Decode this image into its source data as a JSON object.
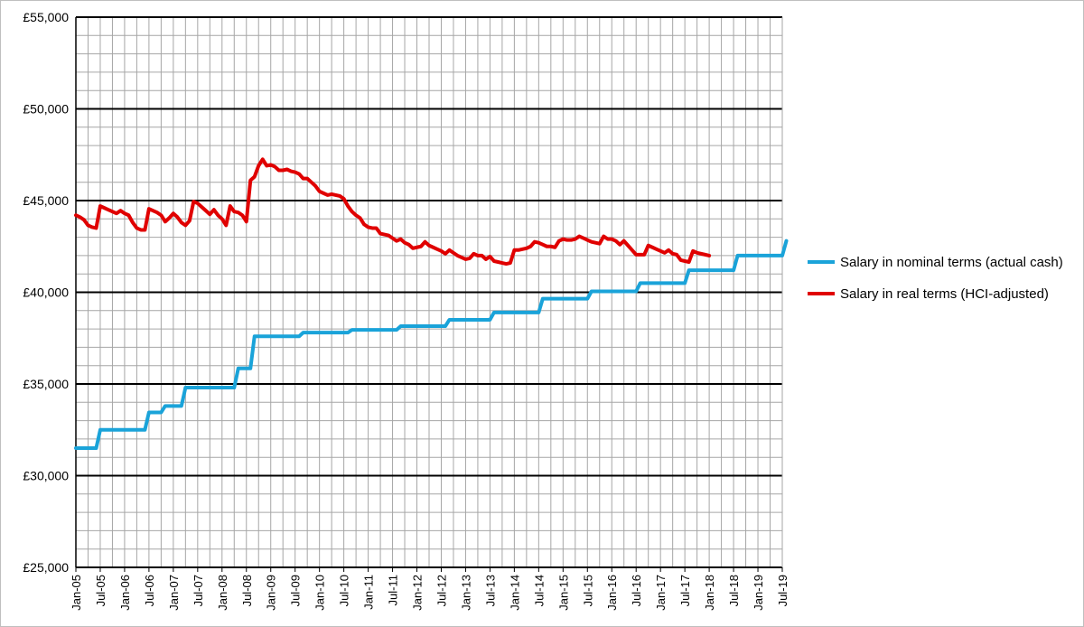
{
  "chart_data": {
    "type": "line",
    "title": "",
    "xlabel": "",
    "ylabel": "",
    "ylim": [
      25000,
      55000
    ],
    "y_ticks": [
      "£25,000",
      "£30,000",
      "£35,000",
      "£40,000",
      "£45,000",
      "£50,000",
      "£55,000"
    ],
    "y_tick_values": [
      25000,
      30000,
      35000,
      40000,
      45000,
      50000,
      55000
    ],
    "x_ticks": [
      "Jan-05",
      "Jul-05",
      "Jan-06",
      "Jul-06",
      "Jan-07",
      "Jul-07",
      "Jan-08",
      "Jul-08",
      "Jan-09",
      "Jul-09",
      "Jan-10",
      "Jul-10",
      "Jan-11",
      "Jul-11",
      "Jan-12",
      "Jul-12",
      "Jan-13",
      "Jul-13",
      "Jan-14",
      "Jul-14",
      "Jan-15",
      "Jul-15",
      "Jan-16",
      "Jul-16",
      "Jan-17",
      "Jul-17",
      "Jan-18",
      "Jul-18",
      "Jan-19",
      "Jul-19"
    ],
    "grid": true,
    "legend_position": "right",
    "series": [
      {
        "name": "Salary in nominal terms (actual cash)",
        "color": "#1aa3d9",
        "points": [
          [
            "Jan-05",
            31500
          ],
          [
            "Jun-05",
            31500
          ],
          [
            "Jul-05",
            32500
          ],
          [
            "Jun-06",
            32500
          ],
          [
            "Jul-06",
            33450
          ],
          [
            "Oct-06",
            33450
          ],
          [
            "Nov-06",
            33800
          ],
          [
            "Mar-07",
            33800
          ],
          [
            "Apr-07",
            34800
          ],
          [
            "Apr-08",
            34800
          ],
          [
            "May-08",
            35850
          ],
          [
            "Aug-08",
            35850
          ],
          [
            "Sep-08",
            37600
          ],
          [
            "Aug-09",
            37600
          ],
          [
            "Sep-09",
            37800
          ],
          [
            "Aug-10",
            37800
          ],
          [
            "Sep-10",
            37950
          ],
          [
            "Aug-11",
            37950
          ],
          [
            "Sep-11",
            38150
          ],
          [
            "Aug-12",
            38150
          ],
          [
            "Sep-12",
            38500
          ],
          [
            "Jul-13",
            38500
          ],
          [
            "Aug-13",
            38900
          ],
          [
            "Jul-14",
            38900
          ],
          [
            "Aug-14",
            39650
          ],
          [
            "Jul-15",
            39650
          ],
          [
            "Aug-15",
            40050
          ],
          [
            "Jul-16",
            40050
          ],
          [
            "Aug-16",
            40500
          ],
          [
            "Jul-17",
            40500
          ],
          [
            "Aug-17",
            41200
          ],
          [
            "Jul-18",
            41200
          ],
          [
            "Aug-18",
            42000
          ],
          [
            "Jul-19",
            42000
          ],
          [
            "Aug-19",
            42800
          ]
        ]
      },
      {
        "name": "Salary in real terms (HCI-adjusted)",
        "color": "#e00000",
        "points": [
          [
            "Jan-05",
            44200
          ],
          [
            "Feb-05",
            44100
          ],
          [
            "Mar-05",
            43950
          ],
          [
            "Apr-05",
            43650
          ],
          [
            "May-05",
            43550
          ],
          [
            "Jun-05",
            43500
          ],
          [
            "Jul-05",
            44700
          ],
          [
            "Aug-05",
            44600
          ],
          [
            "Sep-05",
            44500
          ],
          [
            "Oct-05",
            44400
          ],
          [
            "Nov-05",
            44300
          ],
          [
            "Dec-05",
            44450
          ],
          [
            "Jan-06",
            44300
          ],
          [
            "Feb-06",
            44200
          ],
          [
            "Mar-06",
            43800
          ],
          [
            "Apr-06",
            43500
          ],
          [
            "May-06",
            43400
          ],
          [
            "Jun-06",
            43400
          ],
          [
            "Jul-06",
            44550
          ],
          [
            "Aug-06",
            44450
          ],
          [
            "Sep-06",
            44350
          ],
          [
            "Oct-06",
            44200
          ],
          [
            "Nov-06",
            43850
          ],
          [
            "Dec-06",
            44050
          ],
          [
            "Jan-07",
            44300
          ],
          [
            "Feb-07",
            44100
          ],
          [
            "Mar-07",
            43800
          ],
          [
            "Apr-07",
            43650
          ],
          [
            "May-07",
            43900
          ],
          [
            "Jun-07",
            44950
          ],
          [
            "Jul-07",
            44850
          ],
          [
            "Aug-07",
            44650
          ],
          [
            "Sep-07",
            44450
          ],
          [
            "Oct-07",
            44250
          ],
          [
            "Nov-07",
            44500
          ],
          [
            "Dec-07",
            44200
          ],
          [
            "Jan-08",
            44000
          ],
          [
            "Feb-08",
            43650
          ],
          [
            "Mar-08",
            44700
          ],
          [
            "Apr-08",
            44400
          ],
          [
            "May-08",
            44350
          ],
          [
            "Jun-08",
            44200
          ],
          [
            "Jul-08",
            43850
          ],
          [
            "Aug-08",
            46100
          ],
          [
            "Sep-08",
            46300
          ],
          [
            "Oct-08",
            46900
          ],
          [
            "Nov-08",
            47250
          ],
          [
            "Dec-08",
            46900
          ],
          [
            "Jan-09",
            46950
          ],
          [
            "Feb-09",
            46850
          ],
          [
            "Mar-09",
            46650
          ],
          [
            "Apr-09",
            46650
          ],
          [
            "May-09",
            46700
          ],
          [
            "Jun-09",
            46600
          ],
          [
            "Jul-09",
            46550
          ],
          [
            "Aug-09",
            46450
          ],
          [
            "Sep-09",
            46200
          ],
          [
            "Oct-09",
            46200
          ],
          [
            "Nov-09",
            46000
          ],
          [
            "Dec-09",
            45800
          ],
          [
            "Jan-10",
            45500
          ],
          [
            "Feb-10",
            45400
          ],
          [
            "Mar-10",
            45300
          ],
          [
            "Apr-10",
            45350
          ],
          [
            "May-10",
            45300
          ],
          [
            "Jun-10",
            45250
          ],
          [
            "Jul-10",
            45100
          ],
          [
            "Aug-10",
            44700
          ],
          [
            "Sep-10",
            44400
          ],
          [
            "Oct-10",
            44200
          ],
          [
            "Nov-10",
            44050
          ],
          [
            "Dec-10",
            43700
          ],
          [
            "Jan-11",
            43550
          ],
          [
            "Feb-11",
            43500
          ],
          [
            "Mar-11",
            43500
          ],
          [
            "Apr-11",
            43200
          ],
          [
            "May-11",
            43150
          ],
          [
            "Jun-11",
            43100
          ],
          [
            "Jul-11",
            42950
          ],
          [
            "Aug-11",
            42800
          ],
          [
            "Sep-11",
            42900
          ],
          [
            "Oct-11",
            42700
          ],
          [
            "Nov-11",
            42600
          ],
          [
            "Dec-11",
            42400
          ],
          [
            "Jan-12",
            42450
          ],
          [
            "Feb-12",
            42500
          ],
          [
            "Mar-12",
            42750
          ],
          [
            "Apr-12",
            42550
          ],
          [
            "May-12",
            42450
          ],
          [
            "Jun-12",
            42350
          ],
          [
            "Jul-12",
            42250
          ],
          [
            "Aug-12",
            42100
          ],
          [
            "Sep-12",
            42300
          ],
          [
            "Oct-12",
            42150
          ],
          [
            "Nov-12",
            42000
          ],
          [
            "Dec-12",
            41900
          ],
          [
            "Jan-13",
            41800
          ],
          [
            "Feb-13",
            41850
          ],
          [
            "Mar-13",
            42100
          ],
          [
            "Apr-13",
            42000
          ],
          [
            "May-13",
            42000
          ],
          [
            "Jun-13",
            41800
          ],
          [
            "Jul-13",
            41950
          ],
          [
            "Aug-13",
            41700
          ],
          [
            "Sep-13",
            41650
          ],
          [
            "Oct-13",
            41600
          ],
          [
            "Nov-13",
            41550
          ],
          [
            "Dec-13",
            41600
          ],
          [
            "Jan-14",
            42300
          ],
          [
            "Feb-14",
            42300
          ],
          [
            "Mar-14",
            42350
          ],
          [
            "Apr-14",
            42400
          ],
          [
            "May-14",
            42500
          ],
          [
            "Jun-14",
            42750
          ],
          [
            "Jul-14",
            42700
          ],
          [
            "Aug-14",
            42600
          ],
          [
            "Sep-14",
            42500
          ],
          [
            "Oct-14",
            42500
          ],
          [
            "Nov-14",
            42450
          ],
          [
            "Dec-14",
            42800
          ],
          [
            "Jan-15",
            42900
          ],
          [
            "Feb-15",
            42850
          ],
          [
            "Mar-15",
            42850
          ],
          [
            "Apr-15",
            42900
          ],
          [
            "May-15",
            43050
          ],
          [
            "Jun-15",
            42950
          ],
          [
            "Jul-15",
            42850
          ],
          [
            "Aug-15",
            42750
          ],
          [
            "Sep-15",
            42700
          ],
          [
            "Oct-15",
            42650
          ],
          [
            "Nov-15",
            43050
          ],
          [
            "Dec-15",
            42900
          ],
          [
            "Jan-16",
            42900
          ],
          [
            "Feb-16",
            42800
          ],
          [
            "Mar-16",
            42600
          ],
          [
            "Apr-16",
            42800
          ],
          [
            "May-16",
            42550
          ],
          [
            "Jun-16",
            42300
          ],
          [
            "Jul-16",
            42050
          ],
          [
            "Aug-16",
            42050
          ],
          [
            "Sep-16",
            42050
          ],
          [
            "Oct-16",
            42550
          ],
          [
            "Nov-16",
            42450
          ],
          [
            "Dec-16",
            42350
          ],
          [
            "Jan-17",
            42250
          ],
          [
            "Feb-17",
            42150
          ],
          [
            "Mar-17",
            42300
          ],
          [
            "Apr-17",
            42100
          ],
          [
            "May-17",
            42050
          ],
          [
            "Jun-17",
            41750
          ],
          [
            "Jul-17",
            41700
          ],
          [
            "Aug-17",
            41650
          ],
          [
            "Sep-17",
            42250
          ],
          [
            "Oct-17",
            42150
          ],
          [
            "Nov-17",
            42100
          ],
          [
            "Dec-17",
            42050
          ],
          [
            "Jan-18",
            42000
          ]
        ]
      }
    ]
  }
}
